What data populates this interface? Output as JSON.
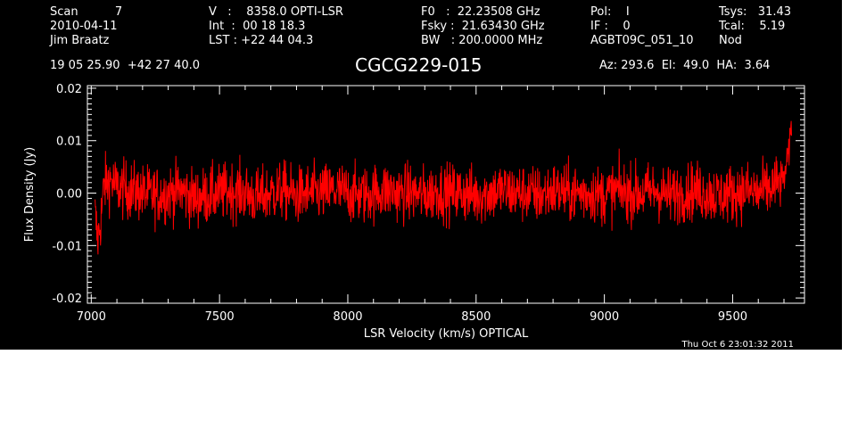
{
  "header": {
    "col1": [
      "Scan          7",
      "2010-04-11",
      "Jim Braatz"
    ],
    "col2": [
      "V   :    8358.0 OPTI-LSR",
      "Int  :  00 18 18.3",
      "LST : +22 44 04.3"
    ],
    "col3": [
      "F0   :  22.23508 GHz",
      "Fsky :  21.63430 GHz",
      "BW   : 200.0000 MHz"
    ],
    "col4": [
      "Pol:    I",
      "IF :    0",
      "AGBT09C_051_10"
    ],
    "col5": [
      "Tsys:   31.43",
      "Tcal:    5.19",
      "Nod"
    ],
    "coords": "19 05 25.90  +42 27 40.0",
    "azelha": "Az: 293.6  El:  49.0  HA:  3.64"
  },
  "chart_data": {
    "type": "line",
    "title": "CGCG229-015",
    "xlabel": "LSR Velocity (km/s) OPTICAL",
    "ylabel": "Flux Density (Jy)",
    "xlim": [
      6985,
      9780
    ],
    "ylim": [
      -0.021,
      0.0205
    ],
    "x_ticks": [
      7000,
      7500,
      8000,
      8500,
      9000,
      9500
    ],
    "x_tick_labels": [
      "7000",
      "7500",
      "8000",
      "8500",
      "9000",
      "9500"
    ],
    "y_ticks": [
      0.02,
      0.01,
      0.0,
      -0.01,
      -0.02
    ],
    "y_tick_labels": [
      "0.02",
      "0.01",
      "0.00",
      "-0.01",
      "-0.02"
    ],
    "series_color": "#ff0000",
    "series": [
      {
        "x": [
          7015,
          7025,
          7035,
          7050,
          7075,
          7100,
          7150,
          7200,
          7250,
          7300,
          7350,
          7400,
          7450,
          7500,
          7550,
          7600,
          7650,
          7700,
          7750,
          7800,
          7850,
          7900,
          7950,
          8000,
          8050,
          8100,
          8150,
          8200,
          8250,
          8300,
          8350,
          8400,
          8450,
          8500,
          8550,
          8600,
          8650,
          8700,
          8750,
          8800,
          8850,
          8900,
          8950,
          9000,
          9050,
          9100,
          9150,
          9200,
          9250,
          9300,
          9350,
          9400,
          9450,
          9500,
          9550,
          9600,
          9650,
          9680,
          9700,
          9710,
          9720,
          9725,
          9730
        ],
        "y": [
          -0.004,
          -0.009,
          -0.006,
          0.0015,
          0.0025,
          0.001,
          0.0005,
          0.0,
          -0.0005,
          0.0,
          0.0005,
          -0.001,
          -0.0005,
          0.0,
          0.0005,
          0.0,
          -0.001,
          0.0,
          0.0005,
          -0.0005,
          0.0,
          0.0,
          0.0005,
          0.0,
          -0.0005,
          0.0,
          0.0005,
          0.0,
          0.0,
          -0.0005,
          0.0005,
          0.0,
          0.0,
          -0.0005,
          0.0,
          0.0005,
          0.0,
          0.0,
          -0.0005,
          0.0005,
          0.0,
          0.0,
          0.0,
          -0.0005,
          0.0005,
          0.0,
          0.0,
          0.0005,
          -0.0005,
          0.0,
          0.0005,
          0.0,
          -0.0005,
          0.0,
          0.0005,
          0.0,
          0.001,
          0.002,
          0.003,
          0.005,
          0.008,
          0.011,
          0.013
        ]
      }
    ]
  },
  "timestamp": "Thu Oct  6 23:01:32 2011"
}
